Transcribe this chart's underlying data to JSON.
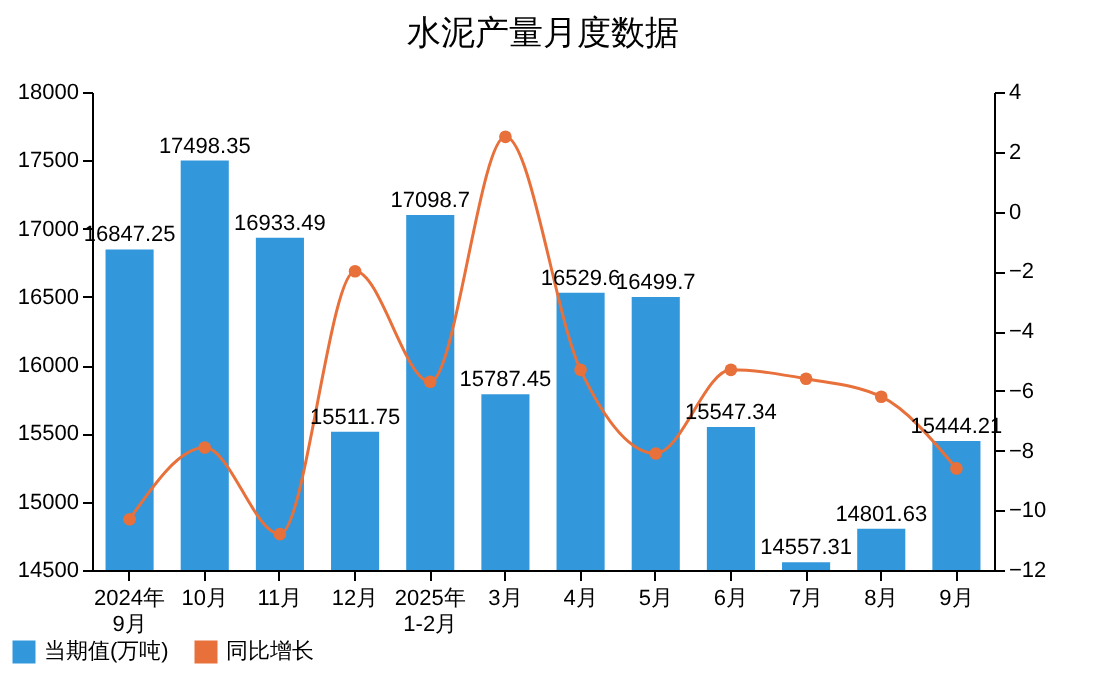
{
  "chart_data": {
    "type": "bar",
    "title": "水泥产量月度数据",
    "categories": [
      "2024年\n9月",
      "10月",
      "11月",
      "12月",
      "2025年\n1-2月",
      "3月",
      "4月",
      "5月",
      "6月",
      "7月",
      "8月",
      "9月"
    ],
    "series": [
      {
        "name": "当期值(万吨)",
        "color": "#3398db",
        "values": [
          16847.25,
          17498.35,
          16933.49,
          15511.75,
          17098.7,
          15787.45,
          16529.6,
          16499.7,
          15547.34,
          14557.31,
          14801.63,
          15444.21
        ],
        "value_labels": [
          "16847.25",
          "17498.35",
          "16933.49",
          "15511.75",
          "17098.7",
          "15787.45",
          "16529.6",
          "16499.7",
          "15547.34",
          "14557.31",
          "14801.63",
          "15444.21"
        ]
      },
      {
        "name": "同比增长",
        "type": "line",
        "axis": "y2",
        "color": "#e8703a",
        "values": [
          -10.3,
          -7.9,
          -10.8,
          -2.0,
          -5.7,
          2.5,
          -5.3,
          -8.1,
          -5.3,
          -5.6,
          -6.2,
          -8.6
        ]
      }
    ],
    "ylim": [
      14500,
      18000
    ],
    "yticks": [
      14500,
      15000,
      15500,
      16000,
      16500,
      17000,
      17500,
      18000
    ],
    "y2lim": [
      -12,
      4
    ],
    "y2ticks": [
      -12,
      -10,
      -8,
      -6,
      -4,
      -2,
      0,
      2,
      4
    ],
    "legend": "bottom left",
    "marker": "circle",
    "grid": false
  }
}
